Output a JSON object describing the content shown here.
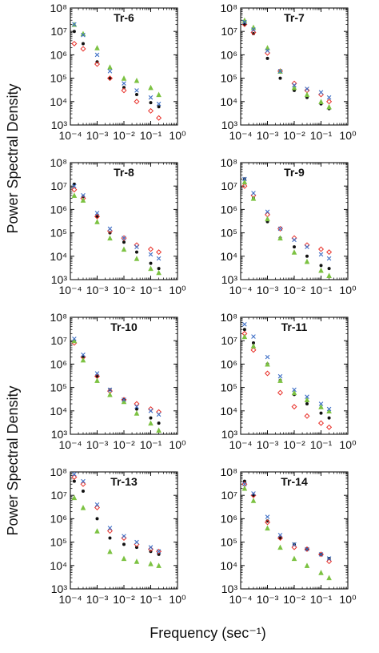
{
  "figure": {
    "ylabel": "Power Spectral Density",
    "xlabel": "Frequency (sec⁻¹)",
    "x_tick_labels": [
      "10⁻⁴",
      "10⁻³",
      "10⁻²",
      "10⁻¹",
      "10⁰"
    ],
    "y_tick_labels": [
      "10³",
      "10⁴",
      "10⁵",
      "10⁶",
      "10⁷",
      "10⁸"
    ],
    "colors": {
      "black": "#111111",
      "red": "#e8312a",
      "green": "#7cc242",
      "blue": "#3e6fc6"
    }
  },
  "chart_data": [
    {
      "type": "scatter",
      "title": "Tr-6",
      "xscale": "log",
      "yscale": "log",
      "xlim": [
        0.0001,
        1
      ],
      "ylim": [
        1000,
        100000000
      ],
      "grid": false,
      "x": [
        0.00014,
        0.0003,
        0.001,
        0.003,
        0.01,
        0.03,
        0.1,
        0.2
      ],
      "series": [
        {
          "marker": "dot",
          "color": "black",
          "values": [
            10000000,
            3000000,
            500000,
            100000,
            40000,
            20000,
            9000,
            6000
          ]
        },
        {
          "marker": "diamond",
          "color": "red",
          "values": [
            3000000,
            1800000,
            400000,
            100000,
            30000,
            10000,
            4000,
            2000
          ]
        },
        {
          "marker": "triangle",
          "color": "green",
          "values": [
            20000000,
            8000000,
            2000000,
            300000,
            100000,
            80000,
            40000,
            20000
          ]
        },
        {
          "marker": "cross",
          "color": "blue",
          "values": [
            20000000,
            7000000,
            1000000,
            200000,
            60000,
            30000,
            15000,
            8000
          ]
        }
      ]
    },
    {
      "type": "scatter",
      "title": "Tr-7",
      "xscale": "log",
      "yscale": "log",
      "xlim": [
        0.0001,
        1
      ],
      "ylim": [
        1000,
        100000000
      ],
      "grid": false,
      "x": [
        0.00014,
        0.0003,
        0.001,
        0.003,
        0.01,
        0.03,
        0.1,
        0.2
      ],
      "series": [
        {
          "marker": "dot",
          "color": "black",
          "values": [
            20000000,
            8000000,
            700000,
            100000,
            30000,
            15000,
            8000,
            5000
          ]
        },
        {
          "marker": "diamond",
          "color": "red",
          "values": [
            20000000,
            9000000,
            1200000,
            200000,
            60000,
            30000,
            20000,
            10000
          ]
        },
        {
          "marker": "triangle",
          "color": "green",
          "values": [
            30000000,
            15000000,
            2000000,
            200000,
            40000,
            20000,
            10000,
            6000
          ]
        },
        {
          "marker": "cross",
          "color": "blue",
          "values": [
            25000000,
            12000000,
            1500000,
            200000,
            50000,
            35000,
            25000,
            15000
          ]
        }
      ]
    },
    {
      "type": "scatter",
      "title": "Tr-8",
      "xscale": "log",
      "yscale": "log",
      "xlim": [
        0.0001,
        1
      ],
      "ylim": [
        1000,
        100000000
      ],
      "grid": false,
      "x": [
        0.00014,
        0.0003,
        0.001,
        0.003,
        0.01,
        0.03,
        0.1,
        0.2
      ],
      "series": [
        {
          "marker": "dot",
          "color": "black",
          "values": [
            12000000,
            3500000,
            500000,
            100000,
            40000,
            15000,
            5000,
            3000
          ]
        },
        {
          "marker": "diamond",
          "color": "red",
          "values": [
            7000000,
            3000000,
            500000,
            120000,
            60000,
            30000,
            20000,
            15000
          ]
        },
        {
          "marker": "triangle",
          "color": "green",
          "values": [
            4000000,
            2500000,
            300000,
            60000,
            20000,
            8000,
            3000,
            2000
          ]
        },
        {
          "marker": "cross",
          "color": "blue",
          "values": [
            10000000,
            4000000,
            700000,
            150000,
            60000,
            25000,
            12000,
            8000
          ]
        }
      ]
    },
    {
      "type": "scatter",
      "title": "Tr-9",
      "xscale": "log",
      "yscale": "log",
      "xlim": [
        0.0001,
        1
      ],
      "ylim": [
        1000,
        100000000
      ],
      "grid": false,
      "x": [
        0.00014,
        0.0003,
        0.001,
        0.003,
        0.01,
        0.03,
        0.1,
        0.2
      ],
      "series": [
        {
          "marker": "dot",
          "color": "black",
          "values": [
            20000000,
            3000000,
            300000,
            60000,
            25000,
            10000,
            4000,
            3000
          ]
        },
        {
          "marker": "diamond",
          "color": "red",
          "values": [
            10000000,
            4000000,
            600000,
            150000,
            60000,
            30000,
            20000,
            15000
          ]
        },
        {
          "marker": "triangle",
          "color": "green",
          "values": [
            15000000,
            3000000,
            400000,
            60000,
            15000,
            6000,
            2500,
            1500
          ]
        },
        {
          "marker": "cross",
          "color": "blue",
          "values": [
            20000000,
            5000000,
            800000,
            150000,
            50000,
            25000,
            12000,
            8000
          ]
        }
      ]
    },
    {
      "type": "scatter",
      "title": "Tr-10",
      "xscale": "log",
      "yscale": "log",
      "xlim": [
        0.0001,
        1
      ],
      "ylim": [
        1000,
        100000000
      ],
      "grid": false,
      "x": [
        0.00014,
        0.0003,
        0.001,
        0.003,
        0.01,
        0.03,
        0.1,
        0.2
      ],
      "series": [
        {
          "marker": "dot",
          "color": "black",
          "values": [
            10000000,
            2000000,
            300000,
            80000,
            30000,
            12000,
            5000,
            3000
          ]
        },
        {
          "marker": "diamond",
          "color": "red",
          "values": [
            8000000,
            2000000,
            300000,
            70000,
            30000,
            20000,
            12000,
            9000
          ]
        },
        {
          "marker": "triangle",
          "color": "green",
          "values": [
            10000000,
            1500000,
            200000,
            50000,
            25000,
            8000,
            3000,
            1500
          ]
        },
        {
          "marker": "cross",
          "color": "blue",
          "values": [
            12000000,
            2500000,
            400000,
            80000,
            30000,
            15000,
            10000,
            7000
          ]
        }
      ]
    },
    {
      "type": "scatter",
      "title": "Tr-11",
      "xscale": "log",
      "yscale": "log",
      "xlim": [
        0.0001,
        1
      ],
      "ylim": [
        1000,
        100000000
      ],
      "grid": false,
      "x": [
        0.00014,
        0.0003,
        0.001,
        0.003,
        0.01,
        0.03,
        0.1,
        0.2
      ],
      "series": [
        {
          "marker": "dot",
          "color": "black",
          "values": [
            30000000,
            8000000,
            1000000,
            200000,
            50000,
            20000,
            8000,
            5000
          ]
        },
        {
          "marker": "diamond",
          "color": "red",
          "values": [
            20000000,
            4000000,
            400000,
            60000,
            15000,
            6000,
            3000,
            2000
          ]
        },
        {
          "marker": "triangle",
          "color": "green",
          "values": [
            15000000,
            6000000,
            1000000,
            200000,
            60000,
            30000,
            15000,
            10000
          ]
        },
        {
          "marker": "cross",
          "color": "blue",
          "values": [
            50000000,
            15000000,
            2000000,
            300000,
            80000,
            40000,
            20000,
            12000
          ]
        }
      ]
    },
    {
      "type": "scatter",
      "title": "Tr-13",
      "xscale": "log",
      "yscale": "log",
      "xlim": [
        0.0001,
        1
      ],
      "ylim": [
        1000,
        100000000
      ],
      "grid": false,
      "x": [
        0.00014,
        0.0003,
        0.001,
        0.003,
        0.01,
        0.03,
        0.1,
        0.2
      ],
      "series": [
        {
          "marker": "dot",
          "color": "black",
          "values": [
            40000000,
            15000000,
            1000000,
            150000,
            80000,
            60000,
            40000,
            30000
          ]
        },
        {
          "marker": "diamond",
          "color": "red",
          "values": [
            60000000,
            30000000,
            3000000,
            300000,
            150000,
            80000,
            50000,
            40000
          ]
        },
        {
          "marker": "triangle",
          "color": "green",
          "values": [
            8000000,
            3000000,
            300000,
            40000,
            20000,
            15000,
            12000,
            10000
          ]
        },
        {
          "marker": "cross",
          "color": "blue",
          "values": [
            80000000,
            40000000,
            4000000,
            400000,
            180000,
            100000,
            60000,
            40000
          ]
        }
      ]
    },
    {
      "type": "scatter",
      "title": "Tr-14",
      "xscale": "log",
      "yscale": "log",
      "xlim": [
        0.0001,
        1
      ],
      "ylim": [
        1000,
        100000000
      ],
      "grid": false,
      "x": [
        0.00014,
        0.0003,
        0.001,
        0.003,
        0.01,
        0.03,
        0.1,
        0.2
      ],
      "series": [
        {
          "marker": "dot",
          "color": "black",
          "values": [
            40000000,
            10000000,
            800000,
            150000,
            80000,
            50000,
            30000,
            20000
          ]
        },
        {
          "marker": "diamond",
          "color": "red",
          "values": [
            30000000,
            10000000,
            700000,
            150000,
            60000,
            50000,
            30000,
            15000
          ]
        },
        {
          "marker": "triangle",
          "color": "green",
          "values": [
            20000000,
            6000000,
            400000,
            60000,
            20000,
            10000,
            5000,
            3000
          ]
        },
        {
          "marker": "cross",
          "color": "blue",
          "values": [
            30000000,
            12000000,
            1200000,
            200000,
            80000,
            50000,
            30000,
            20000
          ]
        }
      ]
    }
  ]
}
